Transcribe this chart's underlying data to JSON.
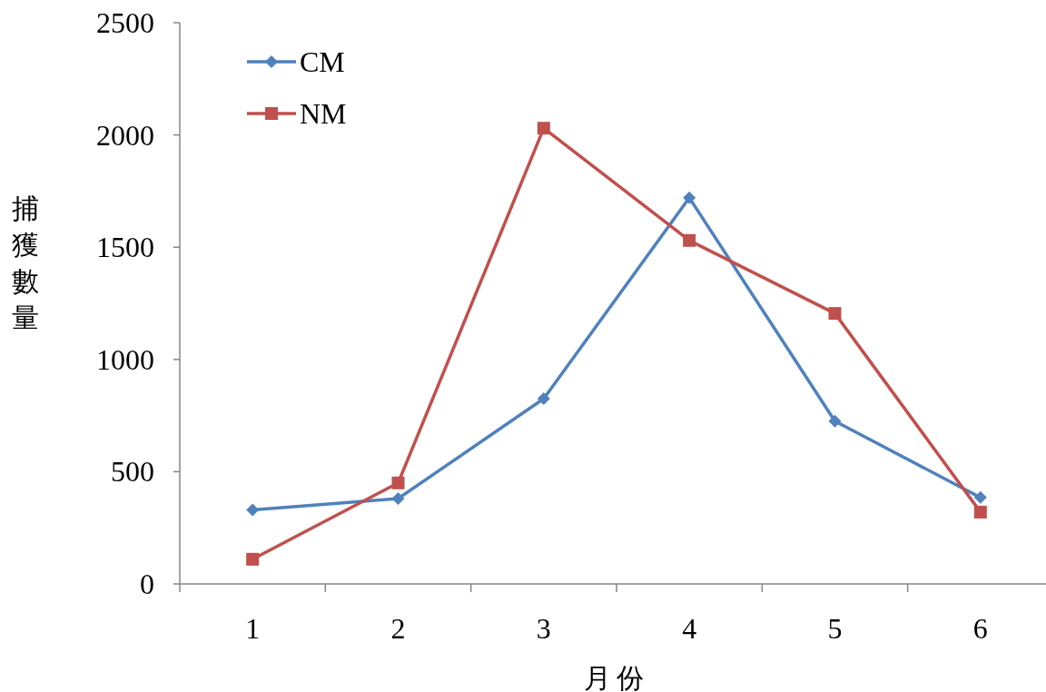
{
  "chart_data": {
    "type": "line",
    "xlabel": "月份",
    "ylabel": "捕獲數量",
    "categories": [
      "1",
      "2",
      "3",
      "4",
      "5",
      "6"
    ],
    "series": [
      {
        "name": "CM",
        "color": "#4f81bd",
        "marker": "diamond",
        "values": [
          330,
          380,
          825,
          1720,
          725,
          385
        ]
      },
      {
        "name": "NM",
        "color": "#c0504d",
        "marker": "square",
        "values": [
          110,
          450,
          2030,
          1530,
          1205,
          320
        ]
      }
    ],
    "ylim": [
      0,
      2500
    ],
    "yticks": [
      0,
      500,
      1000,
      1500,
      2000,
      2500
    ],
    "grid": false,
    "legend": "top left",
    "line_style": "solid"
  }
}
